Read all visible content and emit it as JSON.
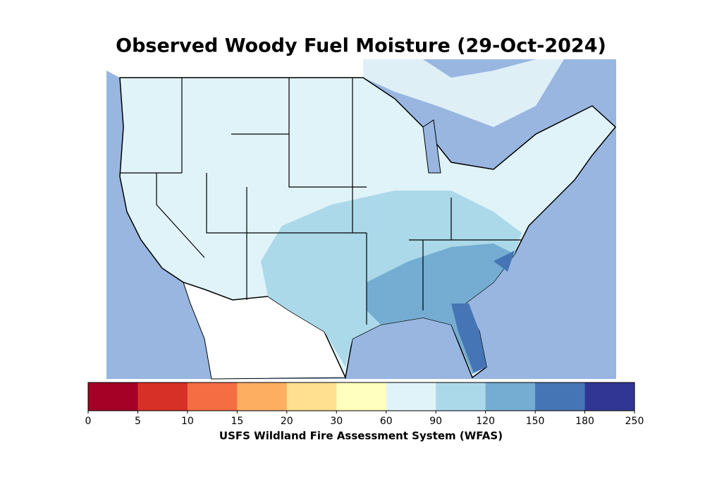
{
  "title": "Observed Woody Fuel Moisture (29-Oct-2024)",
  "colorbar": {
    "ticks": [
      0,
      5,
      10,
      15,
      20,
      30,
      60,
      90,
      120,
      150,
      180,
      250
    ],
    "colors": [
      "#a50026",
      "#d73027",
      "#f46d43",
      "#fdae61",
      "#fee090",
      "#ffffbf",
      "#e0f3f8",
      "#abd9e9",
      "#74add1",
      "#4575b4",
      "#313695"
    ],
    "label": "USFS Wildland Fire Assessment System (WFAS)"
  }
}
